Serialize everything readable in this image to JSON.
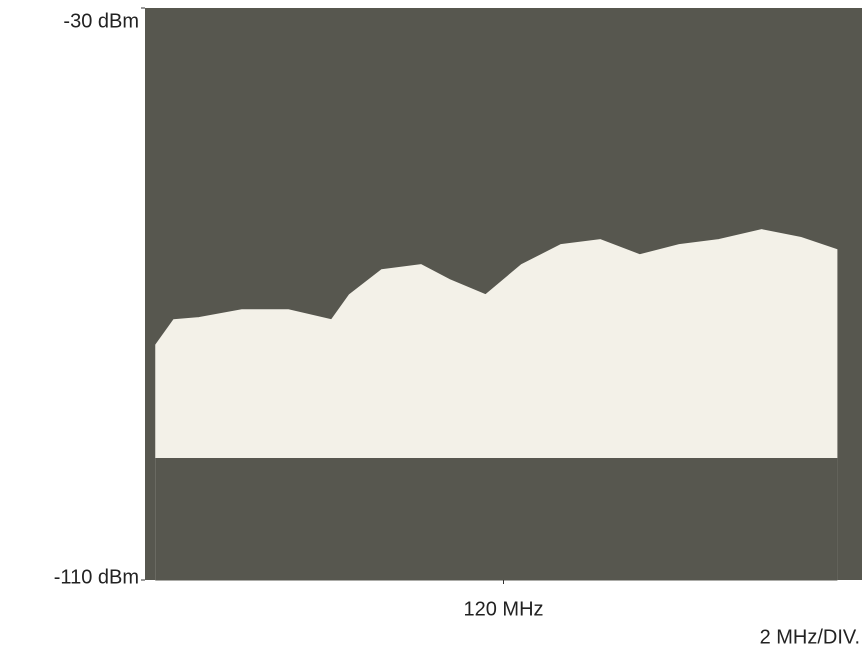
{
  "chart_data": {
    "type": "area",
    "x": [
      110.3,
      110.8,
      111.5,
      112.7,
      114.0,
      115.2,
      115.7,
      116.6,
      117.7,
      118.5,
      119.5,
      120.5,
      121.6,
      122.7,
      123.8,
      124.9,
      126.0,
      127.2,
      128.3,
      129.3
    ],
    "series": [
      {
        "color": "#f3f1e8",
        "values": [
          -77.1,
          -73.6,
          -73.3,
          -72.2,
          -72.2,
          -73.6,
          -70.1,
          -66.6,
          -65.9,
          -68.0,
          -70.1,
          -65.9,
          -63.1,
          -62.4,
          -64.5,
          -63.1,
          -62.4,
          -61.0,
          -62.1,
          -63.8
        ]
      },
      {
        "color": "#57574f",
        "values": [
          -93,
          -93,
          -93,
          -93,
          -93,
          -93,
          -93,
          -93,
          -93,
          -93,
          -93,
          -93,
          -93,
          -93,
          -93,
          -93,
          -93,
          -93,
          -93,
          -93
        ]
      }
    ],
    "xlim": [
      110,
      130
    ],
    "xticks": [
      {
        "value": 120,
        "label": "120 MHz"
      }
    ],
    "ylim": [
      -110,
      -30
    ],
    "yticks": [
      {
        "value": -30,
        "label": "-30 dBm"
      },
      {
        "value": -110,
        "label": "-110 dBm"
      }
    ],
    "annotation": "2 MHz/DIV."
  }
}
